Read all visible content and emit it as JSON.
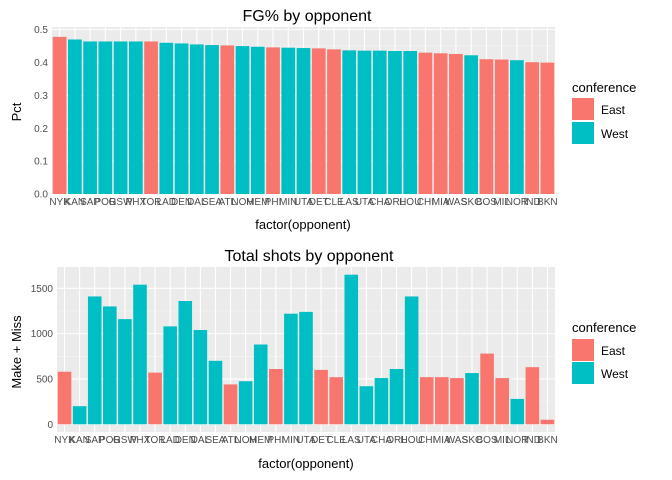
{
  "chart_data": [
    {
      "type": "bar",
      "title": "FG% by opponent",
      "xlabel": "factor(opponent)",
      "ylabel": "Pct",
      "ylim": [
        0,
        0.5
      ],
      "yticks": [
        0.0,
        0.1,
        0.2,
        0.3,
        0.4,
        0.5
      ],
      "ytick_labels": [
        "0.0",
        "0.1",
        "0.2",
        "0.3",
        "0.4",
        "0.5"
      ],
      "grid": true,
      "legend": {
        "title": "conference",
        "placement": "right",
        "entries": [
          "East",
          "West"
        ]
      },
      "categories": [
        "NYK",
        "KAN",
        "SAP",
        "POR",
        "GSW",
        "PHX",
        "TOR",
        "LAD",
        "DEN",
        "DAL",
        "SEA",
        "ATL",
        "NOH",
        "MEM",
        "PHI",
        "MIN",
        "UTA",
        "DET",
        "CLE",
        "LAS",
        "UTA",
        "CHA",
        "ORL",
        "HOU",
        "CHI",
        "MIA",
        "WAS",
        "SKC",
        "BOS",
        "MIL",
        "NOR",
        "IND",
        "BKN"
      ],
      "values": [
        0.478,
        0.47,
        0.464,
        0.464,
        0.464,
        0.464,
        0.464,
        0.46,
        0.458,
        0.455,
        0.453,
        0.452,
        0.45,
        0.448,
        0.446,
        0.445,
        0.444,
        0.443,
        0.44,
        0.437,
        0.436,
        0.436,
        0.435,
        0.435,
        0.43,
        0.428,
        0.426,
        0.422,
        0.41,
        0.409,
        0.407,
        0.401,
        0.4
      ],
      "conference": [
        "East",
        "West",
        "West",
        "West",
        "West",
        "West",
        "East",
        "West",
        "West",
        "West",
        "West",
        "East",
        "West",
        "West",
        "East",
        "West",
        "West",
        "East",
        "East",
        "West",
        "West",
        "West",
        "West",
        "West",
        "East",
        "East",
        "East",
        "West",
        "East",
        "East",
        "West",
        "East",
        "East"
      ]
    },
    {
      "type": "bar",
      "title": "Total shots by opponent",
      "xlabel": "factor(opponent)",
      "ylabel": "Make + Miss",
      "ylim": [
        0,
        1700
      ],
      "yticks": [
        0,
        500,
        1000,
        1500
      ],
      "ytick_labels": [
        "0",
        "500",
        "1000",
        "1500"
      ],
      "grid": true,
      "legend": {
        "title": "conference",
        "placement": "right",
        "entries": [
          "East",
          "West"
        ]
      },
      "categories": [
        "NYK",
        "KAN",
        "SAP",
        "POR",
        "GSW",
        "PHX",
        "TOR",
        "LAD",
        "DEN",
        "DAL",
        "SEA",
        "ATL",
        "NOH",
        "MEM",
        "PHI",
        "MIN",
        "UTA",
        "DET",
        "CLE",
        "LAS",
        "UTA",
        "CHA",
        "ORL",
        "HOU",
        "CHI",
        "MIA",
        "WAS",
        "SKC",
        "BOS",
        "MIL",
        "NOR",
        "IND",
        "BKN"
      ],
      "values": [
        580,
        200,
        1410,
        1300,
        1160,
        1540,
        570,
        1080,
        1360,
        1040,
        700,
        440,
        475,
        880,
        610,
        1220,
        1240,
        600,
        520,
        1650,
        420,
        510,
        610,
        1410,
        520,
        520,
        510,
        565,
        780,
        510,
        280,
        630,
        50
      ],
      "conference": [
        "East",
        "West",
        "West",
        "West",
        "West",
        "West",
        "East",
        "West",
        "West",
        "West",
        "West",
        "East",
        "West",
        "West",
        "East",
        "West",
        "West",
        "East",
        "East",
        "West",
        "West",
        "West",
        "West",
        "West",
        "East",
        "East",
        "East",
        "West",
        "East",
        "East",
        "West",
        "East",
        "East"
      ]
    }
  ],
  "colors": {
    "East": "#F8766D",
    "West": "#00BFC4",
    "panel": "#EBEBEB",
    "grid_major": "#FFFFFF",
    "grid_minor": "#F5F5F5"
  }
}
